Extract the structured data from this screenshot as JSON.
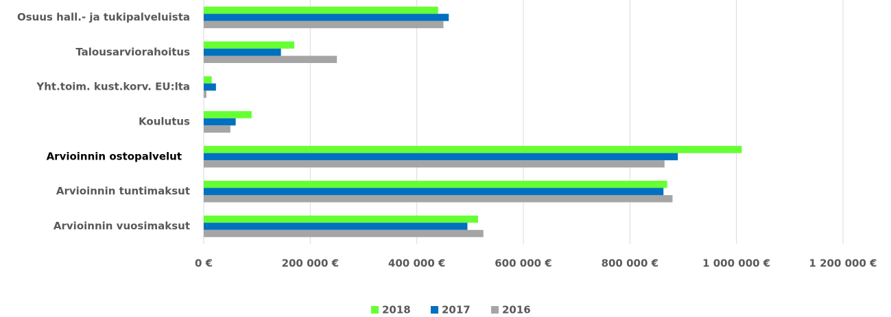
{
  "chart_data": {
    "type": "hbar",
    "categories": [
      "Osuus hall.- ja tukipalveluista",
      "Talousarviorahoitus",
      "Yht.toim. kust.korv. EU:lta",
      "Koulutus",
      "Arvioinnin ostopalvelut",
      "Arvioinnin tuntimaksut",
      "Arvioinnin vuosimaksut"
    ],
    "series": [
      {
        "name": "2018",
        "color": "#66ff33",
        "values": [
          440000,
          170000,
          15000,
          90000,
          1010000,
          870000,
          515000
        ]
      },
      {
        "name": "2017",
        "color": "#0070c0",
        "values": [
          460000,
          145000,
          23000,
          60000,
          890000,
          863000,
          495000
        ]
      },
      {
        "name": "2016",
        "color": "#a5a5a5",
        "values": [
          450000,
          250000,
          5000,
          50000,
          865000,
          880000,
          525000
        ]
      }
    ],
    "xlim": [
      0,
      1200000
    ],
    "xticks": [
      {
        "value": 0,
        "label": "0 €"
      },
      {
        "value": 200000,
        "label": "200 000 €"
      },
      {
        "value": 400000,
        "label": "400 000 €"
      },
      {
        "value": 600000,
        "label": "600 000 €"
      },
      {
        "value": 800000,
        "label": "800 000 €"
      },
      {
        "value": 1000000,
        "label": "1 000 000 €"
      },
      {
        "value": 1200000,
        "label": "1 200 000 €"
      }
    ],
    "grid": true,
    "legend": "bottom"
  }
}
